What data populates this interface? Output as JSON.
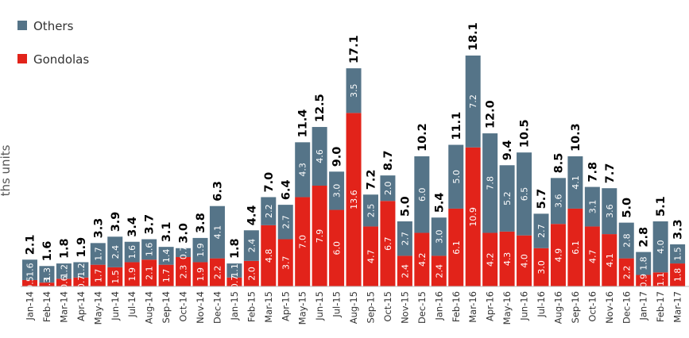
{
  "chart_data": {
    "type": "bar",
    "stacked": true,
    "ylabel": "ths units",
    "legend": {
      "position": "top-left"
    },
    "grid": false,
    "colors": {
      "Gondolas": "#e2231a",
      "Others": "#557488"
    },
    "categories": [
      "Jan-14",
      "Feb-14",
      "Mar-14",
      "Apr-14",
      "May-14",
      "Jun-14",
      "Jul-14",
      "Aug-14",
      "Sep-14",
      "Oct-14",
      "Nov-14",
      "Dec-14",
      "Jan-15",
      "Feb-15",
      "Mar-15",
      "Apr-15",
      "May-15",
      "Jun-15",
      "Jul-15",
      "Aug-15",
      "Sep-15",
      "Oct-15",
      "Nov-15",
      "Dec-15",
      "Jan-16",
      "Feb-16",
      "Mar-16",
      "Apr-16",
      "May-16",
      "Jun-16",
      "Jul-16",
      "Aug-16",
      "Sep-16",
      "Oct-16",
      "Nov-16",
      "Dec-16",
      "Jan-17",
      "Feb-17",
      "Mar-17"
    ],
    "series": [
      {
        "name": "Gondolas",
        "values": [
          0.5,
          0.3,
          0.6,
          0.7,
          1.7,
          1.5,
          1.9,
          2.1,
          1.7,
          2.3,
          1.9,
          2.2,
          0.7,
          2.0,
          4.8,
          3.7,
          7.0,
          7.9,
          6.0,
          13.6,
          4.7,
          6.7,
          2.4,
          4.2,
          2.4,
          6.1,
          10.9,
          4.2,
          4.3,
          4.0,
          3.0,
          4.9,
          6.1,
          4.7,
          4.1,
          2.2,
          0.9,
          1.1,
          1.8
        ]
      },
      {
        "name": "Others",
        "values": [
          1.6,
          1.3,
          1.2,
          1.2,
          1.7,
          2.4,
          1.6,
          1.6,
          1.4,
          0.7,
          1.9,
          4.1,
          1.1,
          2.4,
          2.2,
          2.7,
          4.3,
          4.6,
          3.0,
          3.5,
          2.5,
          2.0,
          2.7,
          6.0,
          3.0,
          5.0,
          7.2,
          7.8,
          5.2,
          6.5,
          2.7,
          3.6,
          4.1,
          3.1,
          3.6,
          2.8,
          1.8,
          4.0,
          1.5
        ]
      }
    ],
    "seg_labels": {
      "Gondolas": [
        "0.5",
        "0.3",
        "0.6",
        "0.7",
        "1.7",
        "1.5",
        "1.9",
        "2.1",
        "1.7",
        "2.3",
        "1.9",
        "2.2",
        "0.7",
        "2.0",
        "4.8",
        "3.7",
        "7.0",
        "7.9",
        "6.0",
        "13.6",
        "4.7",
        "6.7",
        "2.4",
        "4.2",
        "2.4",
        "6.1",
        "10.9",
        "4.2",
        "4.3",
        "4.0",
        "3.0",
        "4.9",
        "6.1",
        "4.7",
        "4.1",
        "2.2",
        "0.9",
        "1.1",
        "1.8"
      ],
      "Others": [
        "1.6",
        "1.3",
        "1.2",
        "1.2",
        "1.7",
        "2.4",
        "1.6",
        "1.6",
        "1.4",
        "0.7",
        "1.9",
        "4.1",
        "1.1",
        "2.4",
        "2.2",
        "2.7",
        "4.3",
        "4.6",
        "3.0",
        "3.5",
        "2.5",
        "2.0",
        "2.7",
        "6.0",
        "3.0",
        "5.0",
        "7.2",
        "7.8",
        "5.2",
        "6.5",
        "2.7",
        "3.6",
        "4.1",
        "3.1",
        "3.6",
        "2.8",
        "1.8",
        "4.0",
        "1.5"
      ]
    },
    "totals": [
      "2.1",
      "1.6",
      "1.8",
      "1.9",
      "3.3",
      "3.9",
      "3.4",
      "3.7",
      "3.1",
      "3.0",
      "3.8",
      "6.3",
      "1.8",
      "4.4",
      "7.0",
      "6.4",
      "11.4",
      "12.5",
      "9.0",
      "17.1",
      "7.2",
      "8.7",
      "5.0",
      "10.2",
      "5.4",
      "11.1",
      "18.1",
      "12.0",
      "9.4",
      "10.5",
      "5.7",
      "8.5",
      "10.3",
      "7.8",
      "7.7",
      "5.0",
      "2.8",
      "5.1",
      "3.3"
    ],
    "ylim": [
      0,
      18.1
    ]
  }
}
